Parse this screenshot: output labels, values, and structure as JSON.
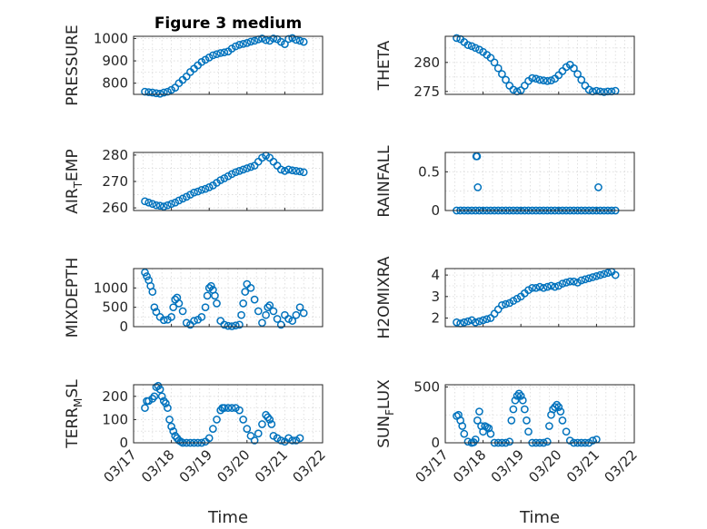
{
  "figure": {
    "title": "Figure 3 medium",
    "xlabel": "Time",
    "marker_color": "#0072bd",
    "grid": "dotted",
    "x_ticks": [
      "03/17",
      "03/18",
      "03/19",
      "03/20",
      "03/21",
      "03/22"
    ]
  },
  "chart_data": [
    {
      "type": "scatter",
      "ylabel": "PRESSURE",
      "ylim": [
        750,
        1010
      ],
      "yticks": [
        800,
        900,
        1000
      ],
      "yminor": [
        750,
        850,
        950
      ],
      "series": [
        {
          "x": [
            17.3,
            17.4,
            17.5,
            17.6,
            17.7,
            17.8,
            17.9,
            18.0,
            18.1,
            18.2,
            18.3,
            18.4,
            18.5,
            18.6,
            18.7,
            18.8,
            18.9,
            19.0,
            19.1,
            19.2,
            19.3,
            19.4,
            19.5,
            19.6,
            19.7,
            19.8,
            19.9,
            20.0,
            20.1,
            20.2,
            20.3,
            20.4,
            20.5,
            20.6,
            20.7,
            20.8,
            20.9,
            21.0,
            21.1,
            21.2,
            21.3,
            21.4,
            21.5
          ],
          "y": [
            762,
            760,
            758,
            755,
            753,
            758,
            762,
            770,
            780,
            800,
            815,
            830,
            850,
            865,
            880,
            895,
            905,
            915,
            925,
            930,
            935,
            938,
            942,
            955,
            965,
            972,
            976,
            980,
            986,
            990,
            996,
            1000,
            993,
            990,
            1000,
            997,
            985,
            975,
            998,
            1002,
            994,
            990,
            985
          ]
        }
      ]
    },
    {
      "type": "scatter",
      "ylabel": "THETA",
      "ylim": [
        274.5,
        284.5
      ],
      "yticks": [
        275,
        280
      ],
      "yminor": [
        277.5,
        282.5
      ],
      "series": [
        {
          "x": [
            17.3,
            17.4,
            17.5,
            17.6,
            17.7,
            17.8,
            17.9,
            18.0,
            18.1,
            18.2,
            18.3,
            18.4,
            18.5,
            18.6,
            18.7,
            18.8,
            18.9,
            19.0,
            19.1,
            19.2,
            19.3,
            19.4,
            19.5,
            19.6,
            19.7,
            19.8,
            19.9,
            20.0,
            20.1,
            20.2,
            20.3,
            20.4,
            20.5,
            20.6,
            20.7,
            20.8,
            20.9,
            21.0,
            21.1,
            21.2,
            21.3,
            21.4,
            21.5
          ],
          "y": [
            284.2,
            284.0,
            283.5,
            283.0,
            282.8,
            282.5,
            282.2,
            281.8,
            281.3,
            280.8,
            280.0,
            279.0,
            278.0,
            277.0,
            276.0,
            275.3,
            275.0,
            275.2,
            276.0,
            276.8,
            277.3,
            277.2,
            277.0,
            276.9,
            276.8,
            276.9,
            277.2,
            277.8,
            278.5,
            279.2,
            279.6,
            279.0,
            278.0,
            277.0,
            276.0,
            275.3,
            275.0,
            275.1,
            275.0,
            274.9,
            275.0,
            275.0,
            275.1
          ]
        }
      ]
    },
    {
      "type": "scatter",
      "ylabel": "AIR_TEMP",
      "ylim": [
        259,
        281
      ],
      "yticks": [
        260,
        270,
        280
      ],
      "yminor": [
        265,
        275
      ],
      "series": [
        {
          "x": [
            17.3,
            17.4,
            17.5,
            17.6,
            17.7,
            17.8,
            17.9,
            18.0,
            18.1,
            18.2,
            18.3,
            18.4,
            18.5,
            18.6,
            18.7,
            18.8,
            18.9,
            19.0,
            19.1,
            19.2,
            19.3,
            19.4,
            19.5,
            19.6,
            19.7,
            19.8,
            19.9,
            20.0,
            20.1,
            20.2,
            20.3,
            20.4,
            20.5,
            20.6,
            20.7,
            20.8,
            20.9,
            21.0,
            21.1,
            21.2,
            21.3,
            21.4,
            21.5
          ],
          "y": [
            262.5,
            262.0,
            261.5,
            261.0,
            260.8,
            260.5,
            261.0,
            261.5,
            262.0,
            262.8,
            263.5,
            264.2,
            265.0,
            265.8,
            266.2,
            266.8,
            267.2,
            267.8,
            268.5,
            269.5,
            270.5,
            271.2,
            272.0,
            272.8,
            273.5,
            274.0,
            274.5,
            275.0,
            275.5,
            276.0,
            277.5,
            279.0,
            279.8,
            279.0,
            277.5,
            276.0,
            274.5,
            274.0,
            274.5,
            274.2,
            274.0,
            273.8,
            273.5
          ]
        }
      ]
    },
    {
      "type": "scatter",
      "ylabel": "RAINFALL",
      "ylim": [
        0,
        0.75
      ],
      "yticks": [
        0,
        0.5
      ],
      "yminor": [
        0.25
      ],
      "series": [
        {
          "x": [
            17.3,
            17.4,
            17.5,
            17.6,
            17.7,
            17.8,
            17.82,
            17.84,
            17.86,
            17.9,
            18.0,
            18.1,
            18.2,
            18.3,
            18.4,
            18.5,
            18.6,
            18.7,
            18.8,
            18.9,
            19.0,
            19.1,
            19.2,
            19.3,
            19.4,
            19.5,
            19.6,
            19.7,
            19.8,
            19.9,
            20.0,
            20.1,
            20.2,
            20.3,
            20.4,
            20.5,
            20.6,
            20.7,
            20.8,
            20.9,
            21.0,
            21.05,
            21.1,
            21.2,
            21.3,
            21.4,
            21.5
          ],
          "y": [
            0,
            0,
            0,
            0,
            0,
            0,
            0.7,
            0.7,
            0.3,
            0,
            0,
            0,
            0,
            0,
            0,
            0,
            0,
            0,
            0,
            0,
            0,
            0,
            0,
            0,
            0,
            0,
            0,
            0,
            0,
            0,
            0,
            0,
            0,
            0,
            0,
            0,
            0,
            0,
            0,
            0,
            0,
            0.3,
            0,
            0,
            0,
            0,
            0
          ]
        }
      ]
    },
    {
      "type": "scatter",
      "ylabel": "MIXDEPTH",
      "ylim": [
        0,
        1500
      ],
      "yticks": [
        0,
        500,
        1000
      ],
      "yminor": [
        250,
        750,
        1250
      ],
      "series": [
        {
          "x": [
            17.3,
            17.35,
            17.4,
            17.45,
            17.5,
            17.55,
            17.6,
            17.7,
            17.8,
            17.9,
            18.0,
            18.05,
            18.1,
            18.15,
            18.2,
            18.3,
            18.4,
            18.5,
            18.6,
            18.7,
            18.8,
            18.9,
            18.95,
            19.0,
            19.05,
            19.1,
            19.15,
            19.2,
            19.3,
            19.4,
            19.5,
            19.6,
            19.7,
            19.8,
            19.85,
            19.9,
            19.95,
            20.0,
            20.1,
            20.2,
            20.3,
            20.4,
            20.5,
            20.55,
            20.6,
            20.7,
            20.8,
            20.9,
            21.0,
            21.1,
            21.2,
            21.3,
            21.4,
            21.5
          ],
          "y": [
            1400,
            1300,
            1200,
            1050,
            900,
            500,
            380,
            250,
            170,
            180,
            250,
            500,
            700,
            750,
            600,
            400,
            100,
            50,
            150,
            180,
            250,
            500,
            800,
            1000,
            1050,
            950,
            800,
            600,
            150,
            50,
            20,
            10,
            30,
            50,
            300,
            600,
            900,
            1100,
            1000,
            700,
            400,
            100,
            300,
            500,
            550,
            400,
            200,
            50,
            300,
            200,
            150,
            300,
            500,
            350
          ]
        }
      ]
    },
    {
      "type": "scatter",
      "ylabel": "H2OMIXRA",
      "ylim": [
        1.6,
        4.3
      ],
      "yticks": [
        2,
        3,
        4
      ],
      "yminor": [
        2.5,
        3.5
      ],
      "series": [
        {
          "x": [
            17.3,
            17.4,
            17.5,
            17.6,
            17.7,
            17.8,
            17.9,
            18.0,
            18.1,
            18.2,
            18.3,
            18.4,
            18.5,
            18.6,
            18.7,
            18.8,
            18.9,
            19.0,
            19.1,
            19.2,
            19.3,
            19.4,
            19.5,
            19.6,
            19.7,
            19.8,
            19.9,
            20.0,
            20.1,
            20.2,
            20.3,
            20.4,
            20.5,
            20.6,
            20.7,
            20.8,
            20.9,
            21.0,
            21.1,
            21.2,
            21.3,
            21.4,
            21.5
          ],
          "y": [
            1.8,
            1.75,
            1.8,
            1.85,
            1.9,
            1.8,
            1.85,
            1.9,
            1.95,
            2.0,
            2.2,
            2.4,
            2.6,
            2.65,
            2.7,
            2.8,
            2.9,
            3.0,
            3.15,
            3.3,
            3.4,
            3.4,
            3.45,
            3.4,
            3.45,
            3.5,
            3.45,
            3.5,
            3.6,
            3.65,
            3.7,
            3.7,
            3.65,
            3.75,
            3.8,
            3.85,
            3.9,
            3.95,
            4.0,
            4.05,
            4.1,
            4.15,
            4.0
          ]
        }
      ]
    },
    {
      "type": "scatter",
      "ylabel": "TERR_MSL",
      "ylim": [
        0,
        250
      ],
      "yticks": [
        0,
        100,
        200
      ],
      "yminor": [
        50,
        150
      ],
      "series": [
        {
          "x": [
            17.3,
            17.35,
            17.4,
            17.5,
            17.55,
            17.6,
            17.65,
            17.7,
            17.75,
            17.8,
            17.85,
            17.9,
            17.95,
            18.0,
            18.05,
            18.1,
            18.15,
            18.2,
            18.25,
            18.3,
            18.4,
            18.5,
            18.6,
            18.7,
            18.8,
            18.9,
            19.0,
            19.1,
            19.2,
            19.3,
            19.35,
            19.4,
            19.5,
            19.6,
            19.7,
            19.8,
            19.9,
            20.0,
            20.1,
            20.2,
            20.3,
            20.4,
            20.5,
            20.55,
            20.6,
            20.65,
            20.7,
            20.8,
            20.9,
            21.0,
            21.1,
            21.2,
            21.3,
            21.4
          ],
          "y": [
            150,
            180,
            180,
            190,
            200,
            240,
            245,
            230,
            200,
            180,
            170,
            150,
            100,
            70,
            50,
            30,
            20,
            10,
            5,
            0,
            0,
            0,
            0,
            0,
            0,
            5,
            20,
            60,
            100,
            140,
            150,
            150,
            150,
            150,
            150,
            140,
            100,
            60,
            30,
            10,
            40,
            80,
            120,
            110,
            100,
            80,
            30,
            20,
            10,
            5,
            20,
            10,
            10,
            20
          ]
        }
      ]
    },
    {
      "type": "scatter",
      "ylabel": "SUN_FLUX",
      "ylim": [
        0,
        520
      ],
      "yticks": [
        0,
        500
      ],
      "yminor": [
        250
      ],
      "series": [
        {
          "x": [
            17.3,
            17.35,
            17.4,
            17.45,
            17.5,
            17.6,
            17.7,
            17.75,
            17.8,
            17.85,
            17.9,
            17.95,
            18.0,
            18.05,
            18.1,
            18.15,
            18.2,
            18.3,
            18.4,
            18.5,
            18.6,
            18.7,
            18.75,
            18.8,
            18.85,
            18.9,
            18.95,
            19.0,
            19.05,
            19.1,
            19.15,
            19.2,
            19.3,
            19.4,
            19.5,
            19.6,
            19.7,
            19.75,
            19.8,
            19.85,
            19.9,
            19.95,
            20.0,
            20.05,
            20.1,
            20.2,
            20.3,
            20.4,
            20.5,
            20.6,
            20.7,
            20.8,
            20.9,
            21.0
          ],
          "y": [
            240,
            250,
            200,
            150,
            80,
            10,
            0,
            5,
            30,
            200,
            280,
            150,
            100,
            150,
            140,
            130,
            80,
            0,
            0,
            0,
            0,
            10,
            200,
            300,
            380,
            420,
            440,
            420,
            380,
            300,
            200,
            100,
            0,
            0,
            0,
            0,
            10,
            150,
            250,
            300,
            320,
            340,
            320,
            280,
            200,
            100,
            20,
            0,
            0,
            0,
            0,
            0,
            20,
            30
          ]
        }
      ]
    }
  ]
}
